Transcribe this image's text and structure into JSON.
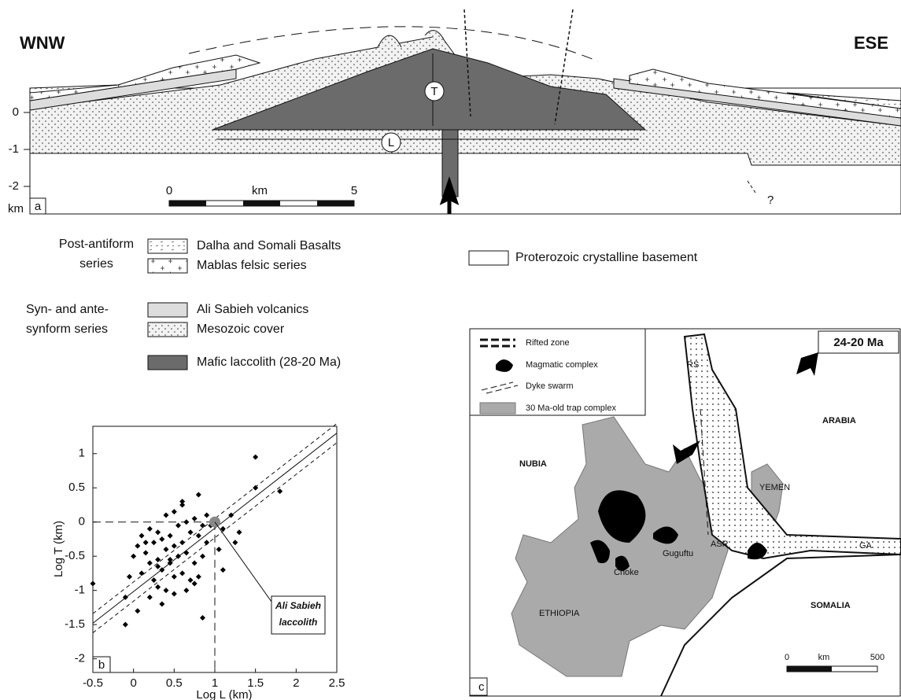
{
  "panel_a": {
    "label": "a",
    "left_direction": "WNW",
    "right_direction": "ESE",
    "depth_ticks": [
      0,
      -1,
      -2
    ],
    "depth_unit": "km",
    "thickness_label": "T",
    "length_label": "L",
    "scale": {
      "start": 0,
      "end": 5,
      "unit": "km"
    },
    "uncertain": "?"
  },
  "legend": {
    "groups": [
      {
        "title": "Post-antiform series",
        "items": [
          "Dalha and Somali Basalts",
          "Mablas felsic series"
        ]
      },
      {
        "title": "Syn- and ante-synform series",
        "items": [
          "Ali Sabieh volcanics",
          "Mesozoic cover"
        ]
      },
      {
        "title": null,
        "items": [
          "Mafic laccolith (28-20 Ma)"
        ]
      }
    ],
    "basement": "Proterozoic crystalline basement"
  },
  "chart_data": {
    "type": "scatter",
    "panel": "b",
    "x_label": "Log L (km)",
    "y_label": "Log T (km)",
    "xlim": [
      -0.5,
      2.5
    ],
    "ylim": [
      -2.2,
      1.4
    ],
    "xticks": [
      -0.5,
      0,
      0.5,
      1,
      1.5,
      2,
      2.5
    ],
    "yticks": [
      1,
      0.5,
      0,
      -0.5,
      -1,
      -1.5,
      -2
    ],
    "x": [
      -0.5,
      -0.1,
      -0.05,
      0.0,
      0.05,
      0.1,
      0.1,
      0.15,
      0.2,
      0.2,
      0.25,
      0.25,
      0.3,
      0.3,
      0.3,
      0.35,
      0.35,
      0.4,
      0.4,
      0.4,
      0.45,
      0.45,
      0.5,
      0.5,
      0.5,
      0.55,
      0.55,
      0.6,
      0.6,
      0.6,
      0.65,
      0.65,
      0.7,
      0.7,
      0.75,
      0.75,
      0.8,
      0.8,
      0.8,
      0.85,
      0.85,
      0.9,
      0.9,
      0.95,
      1.0,
      1.05,
      1.1,
      1.1,
      1.2,
      1.25,
      1.3,
      1.5,
      1.5,
      1.8,
      0.2,
      0.35,
      0.5,
      0.65,
      0.85,
      -0.1,
      0.05,
      0.3,
      0.6,
      0.75,
      0.15,
      0.45
    ],
    "values": [
      -0.9,
      -1.5,
      -0.8,
      -0.5,
      -0.35,
      -0.75,
      -0.2,
      -0.45,
      -0.6,
      -0.1,
      -0.3,
      -0.85,
      -0.15,
      -0.55,
      -0.95,
      -0.25,
      -0.7,
      0.1,
      -0.4,
      -1.0,
      -0.2,
      -0.6,
      0.15,
      -0.35,
      -0.8,
      -0.05,
      -0.5,
      0.25,
      -0.3,
      -0.75,
      0.0,
      -0.45,
      -0.15,
      -0.85,
      0.05,
      -0.6,
      0.4,
      -0.2,
      -0.8,
      -0.05,
      -0.5,
      0.1,
      -0.3,
      -0.05,
      0.0,
      -0.4,
      -0.1,
      -0.7,
      0.1,
      -0.3,
      -0.15,
      0.95,
      0.5,
      0.45,
      -1.1,
      -1.2,
      -1.05,
      -1.0,
      -1.4,
      -1.1,
      -1.3,
      -0.65,
      0.3,
      -0.9,
      -0.3,
      -0.55
    ],
    "fit_lines": [
      {
        "style": "solid",
        "x": [
          -0.5,
          2.5
        ],
        "values": [
          -1.48,
          1.3
        ]
      },
      {
        "style": "dashed",
        "x": [
          -0.5,
          2.5
        ],
        "values": [
          -1.34,
          1.44
        ]
      },
      {
        "style": "dashed",
        "x": [
          -0.5,
          2.5
        ],
        "values": [
          -1.62,
          1.16
        ]
      }
    ],
    "highlight": {
      "x": 1,
      "value": 0,
      "label": "Ali Sabieh laccolith"
    }
  },
  "panel_c": {
    "label": "c",
    "age": "24-20 Ma",
    "legend": [
      "Rifted zone",
      "Magmatic complex",
      "Dyke swarm",
      "30 Ma-old trap complex"
    ],
    "places": [
      "NUBIA",
      "ARABIA",
      "YEMEN",
      "ETHIOPIA",
      "SOMALIA",
      "Guguftu",
      "Choke",
      "RS",
      "ASR",
      "GA"
    ],
    "scale": {
      "start": 0,
      "unit": "km",
      "end": 500
    }
  }
}
